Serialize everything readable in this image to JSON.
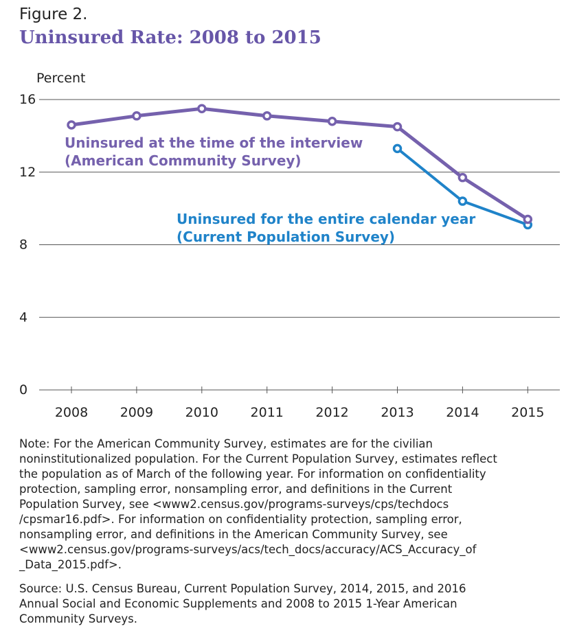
{
  "figure_label": "Figure 2.",
  "colors": {
    "acs": "#7561ad",
    "cps": "#1f83c9",
    "grid": "#555555",
    "text": "#222222",
    "title": "#6756a8"
  },
  "chart_data": {
    "type": "line",
    "title": "Uninsured Rate: 2008 to 2015",
    "ylabel": "Percent",
    "xlabel": "",
    "ylim": [
      0,
      16
    ],
    "yticks": [
      0,
      4,
      8,
      12,
      16
    ],
    "grid": true,
    "categories": [
      "2008",
      "2009",
      "2010",
      "2011",
      "2012",
      "2013",
      "2014",
      "2015"
    ],
    "series": [
      {
        "name": "Uninsured at the time of the interview (American Community Survey)",
        "label_lines": [
          "Uninsured at the time of the interview",
          "(American Community Survey)"
        ],
        "color": "#7561ad",
        "values": [
          14.6,
          15.1,
          15.5,
          15.1,
          14.8,
          14.5,
          11.7,
          9.4
        ]
      },
      {
        "name": "Uninsured for the entire calendar year (Current Population Survey)",
        "label_lines": [
          "Uninsured for the entire calendar year",
          "(Current Population Survey)"
        ],
        "color": "#1f83c9",
        "values": [
          null,
          null,
          null,
          null,
          null,
          13.3,
          10.4,
          9.1
        ]
      }
    ]
  },
  "notes": {
    "note": "Note: For the American Community Survey, estimates are for the civilian\nnoninstitutionalized population. For the Current Population Survey, estimates reflect\nthe population as of March of the following year. For information on confidentiality\nprotection, sampling error, nonsampling error, and definitions in the Current\nPopulation Survey, see <www2.census.gov/programs-surveys/cps/techdocs\n/cpsmar16.pdf>. For information on confidentiality protection, sampling error,\nnonsampling error, and definitions in the American Community Survey, see\n<www2.census.gov/programs-surveys/acs/tech_docs/accuracy/ACS_Accuracy_of\n_Data_2015.pdf>.",
    "source": "Source: U.S. Census Bureau, Current Population Survey,  2014, 2015, and 2016\nAnnual Social and Economic Supplements and 2008 to 2015 1-Year American\nCommunity Surveys."
  }
}
